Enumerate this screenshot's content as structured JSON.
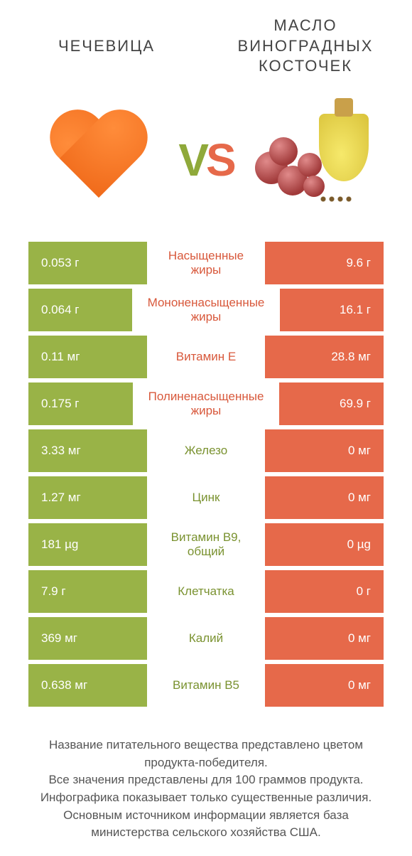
{
  "header": {
    "left_title": "ЧЕЧЕВИЦА",
    "right_title": "МАСЛО ВИНОГРАДНЫХ КОСТОЧЕК"
  },
  "vs": {
    "v": "V",
    "s": "S"
  },
  "colors": {
    "green": "#99b347",
    "orange": "#e6694a",
    "mid_green_text": "#7a9230",
    "mid_orange_text": "#d8583b"
  },
  "rows": [
    {
      "left": "0.053 г",
      "mid": "Насыщенные жиры",
      "right": "9.6 г",
      "winner": "right"
    },
    {
      "left": "0.064 г",
      "mid": "Мононенасыщенные жиры",
      "right": "16.1 г",
      "winner": "right"
    },
    {
      "left": "0.11 мг",
      "mid": "Витамин E",
      "right": "28.8 мг",
      "winner": "right"
    },
    {
      "left": "0.175 г",
      "mid": "Полиненасыщенные жиры",
      "right": "69.9 г",
      "winner": "right"
    },
    {
      "left": "3.33 мг",
      "mid": "Железо",
      "right": "0 мг",
      "winner": "left"
    },
    {
      "left": "1.27 мг",
      "mid": "Цинк",
      "right": "0 мг",
      "winner": "left"
    },
    {
      "left": "181 µg",
      "mid": "Витамин B9, общий",
      "right": "0 µg",
      "winner": "left"
    },
    {
      "left": "7.9 г",
      "mid": "Клетчатка",
      "right": "0 г",
      "winner": "left"
    },
    {
      "left": "369 мг",
      "mid": "Калий",
      "right": "0 мг",
      "winner": "left"
    },
    {
      "left": "0.638 мг",
      "mid": "Витамин B5",
      "right": "0 мг",
      "winner": "left"
    }
  ],
  "footer": {
    "line1": "Название питательного вещества представлено цветом продукта-победителя.",
    "line2": "Все значения представлены для 100 граммов продукта.",
    "line3": "Инфографика показывает только существенные различия.",
    "line4": "Основным источником информации является база министерства сельского хозяйства США."
  }
}
